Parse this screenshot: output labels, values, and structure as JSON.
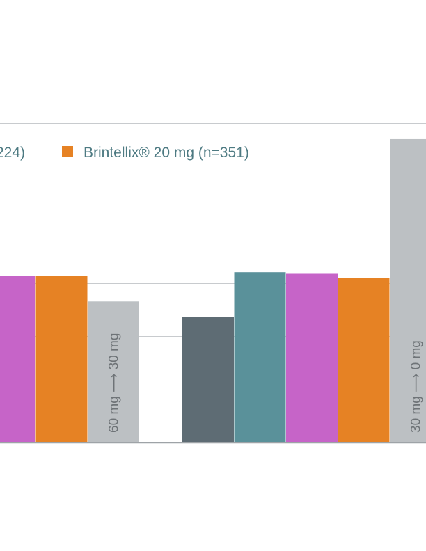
{
  "chart_data": {
    "type": "bar",
    "title": "",
    "xlabel": "",
    "ylabel": "",
    "ylim": [
      0,
      6
    ],
    "grid": true,
    "legend": [
      {
        "name": "224)",
        "color": "#c664c8",
        "swatch": false
      },
      {
        "name": "Brintellix® 20 mg (n=351)",
        "color": "#e68224",
        "swatch": true
      }
    ],
    "groups": [
      {
        "bars": [
          {
            "value": 3.13,
            "color": "#c664c8"
          },
          {
            "value": 3.13,
            "color": "#e68224"
          },
          {
            "value": 2.65,
            "color": "#bcc0c3",
            "label": "60 mg ⟶ 30 mg"
          }
        ]
      },
      {
        "bars": [
          {
            "value": 2.36,
            "color": "#5e6c74"
          },
          {
            "value": 3.2,
            "color": "#5a919a"
          },
          {
            "value": 3.17,
            "color": "#c664c8"
          },
          {
            "value": 3.09,
            "color": "#e68224"
          },
          {
            "value": 5.7,
            "color": "#bcc0c3",
            "label": "30 mg ⟶ 0 mg"
          }
        ]
      }
    ]
  },
  "colors": {
    "grid": "#c8cbce",
    "baseline": "#9ea3a7",
    "legend_text": "#4d7a82",
    "bar_label": "#6e7377",
    "swatch": "#e68224"
  }
}
